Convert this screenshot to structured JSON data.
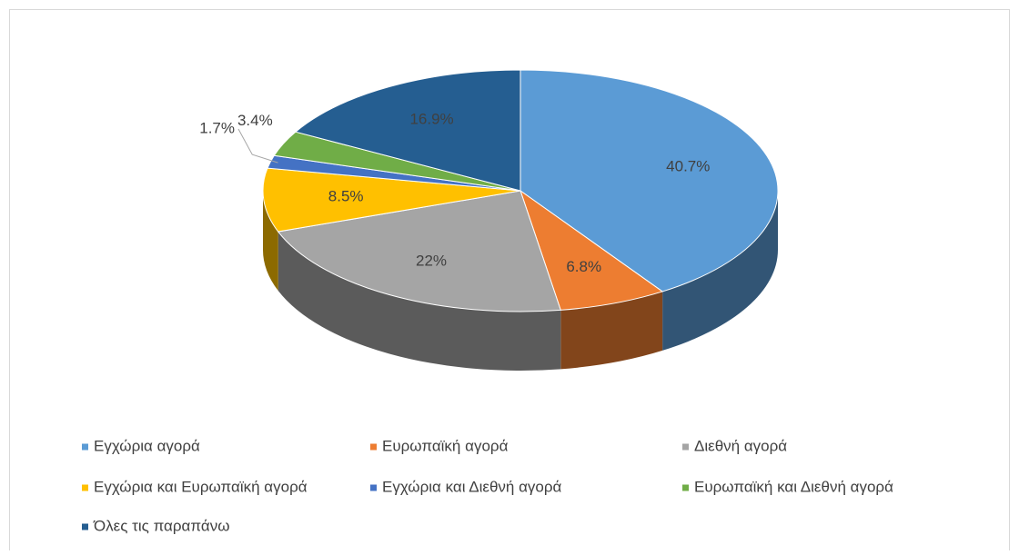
{
  "chart_data": {
    "type": "pie",
    "categories": [
      "Εγχώρια αγορά",
      "Ευρωπαϊκή αγορά",
      "Διεθνή αγορά",
      "Εγχώρια και Ευρωπαϊκή αγορά",
      "Εγχώρια και Διεθνή αγορά",
      "Ευρωπαϊκή και Διεθνή αγορά",
      "Όλες τις παραπάνω"
    ],
    "values": [
      40.7,
      6.8,
      22,
      8.5,
      1.7,
      3.4,
      16.9
    ],
    "value_labels": [
      "40.7%",
      "6.8%",
      "22%",
      "8.5%",
      "1.7%",
      "3.4%",
      "16.9%"
    ],
    "colors": [
      "#5b9bd5",
      "#ed7d31",
      "#a5a5a5",
      "#ffc000",
      "#4472c4",
      "#70ad47",
      "#255e91"
    ],
    "legend": "bottom"
  }
}
